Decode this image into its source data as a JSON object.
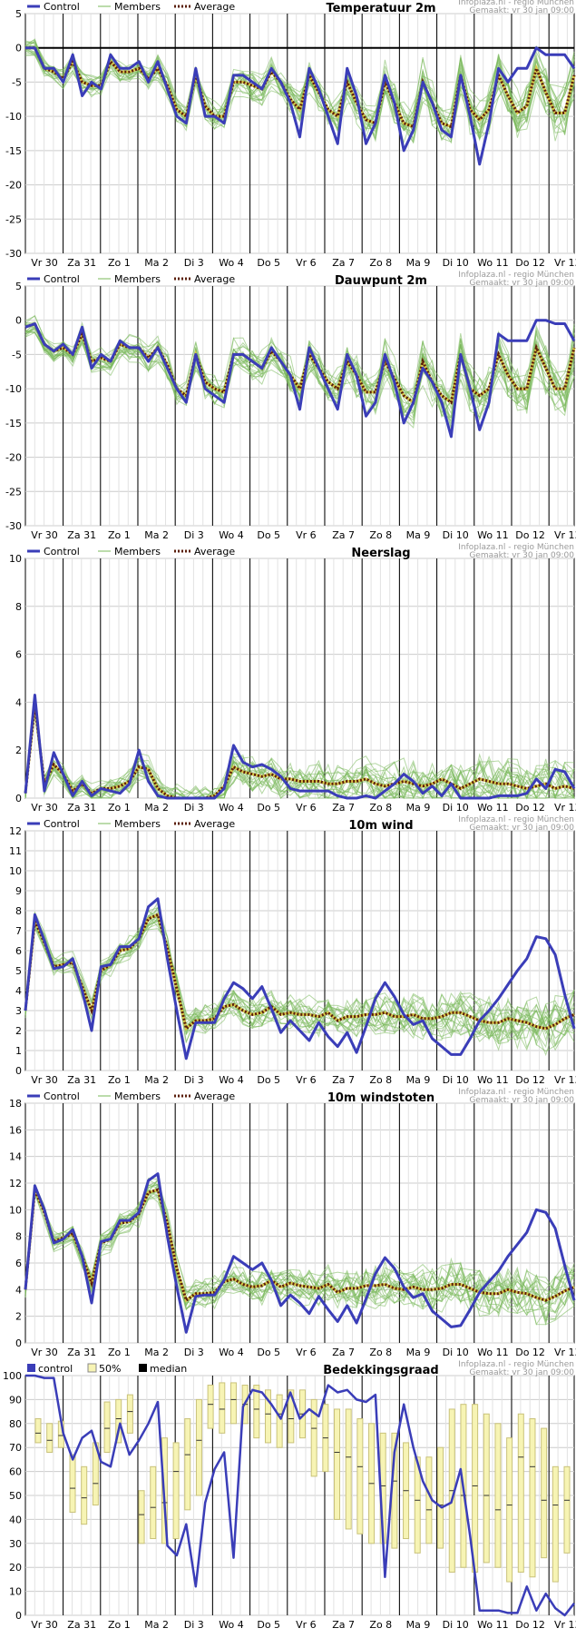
{
  "days": [
    "Vr 30",
    "Za 31",
    "Zo 1",
    "Ma 2",
    "Di 3",
    "Wo 4",
    "Do 5",
    "Vr 6",
    "Za 7",
    "Zo 8",
    "Ma 9",
    "Di 10",
    "Wo 11",
    "Do 12",
    "Vr 13"
  ],
  "site_line": "Infoplaza.nl - regio München",
  "made_line": "Gemaakt: vr 30 jan 09:00",
  "colors": {
    "control": "#3a3db8",
    "members": "#78b85a",
    "average": "#5a1e0a",
    "box": "#f7f4b4",
    "boxBorder": "#c9c27a",
    "grid": "#cccccc",
    "dayline": "#000000"
  },
  "chart_data": [
    {
      "type": "line",
      "title": "Temperatuur 2m",
      "legend": {
        "control": "Control",
        "members": "Members",
        "average": "Average"
      },
      "ylim": [
        -30,
        5
      ],
      "yticks": [
        5,
        0,
        -5,
        -10,
        -15,
        -20,
        -25,
        -30
      ],
      "zero_line": true,
      "series": [
        {
          "name": "Control",
          "values": [
            0,
            0,
            -3,
            -3,
            -5,
            -1,
            -7,
            -5,
            -6,
            -1,
            -3,
            -3,
            -2,
            -5,
            -2,
            -6,
            -10,
            -11,
            -3,
            -10,
            -10,
            -11,
            -4,
            -4,
            -5,
            -6,
            -3,
            -5,
            -8,
            -13,
            -3,
            -6,
            -10,
            -14,
            -3,
            -7,
            -14,
            -11,
            -4,
            -8,
            -15,
            -12,
            -5,
            -8,
            -12,
            -13,
            -4,
            -10,
            -17,
            -11,
            -3,
            -5,
            -3,
            -3,
            0,
            -1,
            -1,
            -1,
            -3
          ]
        },
        {
          "name": "Average",
          "values": [
            0,
            0,
            -3,
            -3.5,
            -4.5,
            -2,
            -5,
            -5.5,
            -5.5,
            -2,
            -3.5,
            -3.5,
            -3,
            -4.5,
            -3,
            -5.5,
            -9,
            -10,
            -4,
            -8.5,
            -10,
            -10,
            -5,
            -5,
            -5.5,
            -6,
            -3.5,
            -5,
            -7.5,
            -9,
            -4,
            -6.5,
            -9,
            -10,
            -5,
            -8,
            -10.5,
            -11,
            -5,
            -8,
            -11,
            -11.5,
            -5,
            -8,
            -11,
            -11.5,
            -4,
            -9,
            -10.5,
            -9,
            -4,
            -7,
            -9.5,
            -8.5,
            -3,
            -6.5,
            -9.5,
            -9.5,
            -4
          ]
        }
      ]
    },
    {
      "type": "line",
      "title": "Dauwpunt 2m",
      "legend": {
        "control": "Control",
        "members": "Members",
        "average": "Average"
      },
      "ylim": [
        -30,
        5
      ],
      "yticks": [
        5,
        0,
        -5,
        -10,
        -15,
        -20,
        -25,
        -30
      ],
      "zero_line": false,
      "series": [
        {
          "name": "Control",
          "values": [
            -1,
            -0.5,
            -3.5,
            -4.5,
            -3.5,
            -5,
            -1,
            -7,
            -5,
            -6,
            -3,
            -4,
            -4,
            -6,
            -4,
            -7,
            -10,
            -12,
            -5,
            -10,
            -11,
            -12,
            -5,
            -5,
            -6,
            -7,
            -4,
            -6,
            -8,
            -13,
            -4,
            -7,
            -10,
            -13,
            -5,
            -8,
            -14,
            -12,
            -5,
            -9,
            -15,
            -12,
            -7,
            -9,
            -12,
            -17,
            -5,
            -10,
            -16,
            -12,
            -2,
            -3,
            -3,
            -3,
            0,
            0,
            -0.5,
            -0.5,
            -3
          ]
        },
        {
          "name": "Average",
          "values": [
            -1,
            -0.5,
            -3.5,
            -4.5,
            -4,
            -5,
            -2,
            -6,
            -5.5,
            -6,
            -3.5,
            -4,
            -4,
            -5.5,
            -4,
            -6.5,
            -10,
            -11,
            -5,
            -9,
            -10,
            -10.5,
            -5,
            -5,
            -6,
            -7,
            -4.5,
            -6,
            -8,
            -10,
            -5,
            -7,
            -9,
            -10,
            -6,
            -8,
            -10.5,
            -10.5,
            -6,
            -8.5,
            -11,
            -12,
            -6,
            -9,
            -11,
            -12,
            -5,
            -10,
            -11,
            -10,
            -5,
            -8,
            -10,
            -10,
            -4,
            -7,
            -10,
            -10,
            -4
          ]
        }
      ]
    },
    {
      "type": "line",
      "title": "Neerslag",
      "legend": {
        "control": "Control",
        "members": "Members",
        "average": "Average"
      },
      "ylim": [
        0,
        10
      ],
      "yticks": [
        10,
        8,
        6,
        4,
        2,
        0
      ],
      "zero_line": false,
      "series": [
        {
          "name": "Control",
          "values": [
            0.2,
            4.3,
            0.3,
            1.9,
            1.0,
            0.1,
            0.7,
            0.1,
            0.4,
            0.3,
            0.2,
            0.6,
            2.0,
            0.7,
            0.1,
            0,
            0,
            0,
            0,
            0,
            0,
            0.4,
            2.2,
            1.5,
            1.3,
            1.4,
            1.2,
            0.9,
            0.4,
            0.3,
            0.3,
            0.3,
            0.3,
            0.1,
            0,
            0,
            0.1,
            0,
            0.3,
            0.6,
            1.0,
            0.7,
            0.2,
            0.5,
            0.1,
            0.6,
            0,
            0,
            0,
            0,
            0.1,
            0.1,
            0.1,
            0.2,
            0.8,
            0.4,
            1.2,
            1.1,
            0.4
          ]
        },
        {
          "name": "Average",
          "values": [
            0.2,
            3.9,
            0.6,
            1.4,
            1.0,
            0.3,
            0.6,
            0.2,
            0.4,
            0.4,
            0.5,
            0.7,
            1.3,
            1.2,
            0.4,
            0.1,
            0,
            0,
            0,
            0,
            0.1,
            0.5,
            1.3,
            1.1,
            1.0,
            0.9,
            1.0,
            0.8,
            0.8,
            0.7,
            0.7,
            0.7,
            0.6,
            0.6,
            0.7,
            0.7,
            0.8,
            0.6,
            0.5,
            0.6,
            0.7,
            0.6,
            0.5,
            0.6,
            0.8,
            0.6,
            0.4,
            0.6,
            0.8,
            0.7,
            0.6,
            0.6,
            0.5,
            0.4,
            0.5,
            0.6,
            0.4,
            0.5,
            0.4
          ]
        }
      ]
    },
    {
      "type": "line",
      "title": "10m wind",
      "legend": {
        "control": "Control",
        "members": "Members",
        "average": "Average"
      },
      "ylim": [
        0,
        12
      ],
      "yticks": [
        12,
        11,
        10,
        9,
        8,
        7,
        6,
        5,
        4,
        3,
        2,
        1,
        0
      ],
      "zero_line": false,
      "series": [
        {
          "name": "Control",
          "values": [
            3,
            7.8,
            6.5,
            5.1,
            5.2,
            5.6,
            4,
            2,
            5.2,
            5.3,
            6.2,
            6.2,
            6.6,
            8.2,
            8.6,
            5.6,
            3,
            0.6,
            2.4,
            2.4,
            2.4,
            3.6,
            4.4,
            4.1,
            3.6,
            4.2,
            3.1,
            1.9,
            2.5,
            2.0,
            1.5,
            2.4,
            1.7,
            1.2,
            1.9,
            0.9,
            2.2,
            3.6,
            4.4,
            3.7,
            2.8,
            2.3,
            2.5,
            1.6,
            1.2,
            0.8,
            0.8,
            1.6,
            2.5,
            3.0,
            3.6,
            4.3,
            5.0,
            5.6,
            6.7,
            6.6,
            5.8,
            3.8,
            2.1
          ]
        },
        {
          "name": "Average",
          "values": [
            3,
            7.5,
            6.4,
            5.2,
            5.3,
            5.4,
            4.2,
            3,
            5,
            5.3,
            6,
            6.1,
            6.6,
            7.6,
            7.8,
            6.1,
            4.1,
            2.1,
            2.5,
            2.5,
            2.6,
            3.2,
            3.3,
            3.0,
            2.8,
            2.9,
            3.2,
            2.8,
            2.9,
            2.8,
            2.8,
            2.7,
            2.9,
            2.5,
            2.7,
            2.7,
            2.8,
            2.8,
            2.9,
            2.7,
            2.7,
            2.8,
            2.6,
            2.6,
            2.7,
            2.9,
            2.9,
            2.7,
            2.5,
            2.4,
            2.4,
            2.6,
            2.5,
            2.4,
            2.2,
            2.1,
            2.3,
            2.6,
            2.8
          ]
        }
      ]
    },
    {
      "type": "line",
      "title": "10m windstoten",
      "legend": {
        "control": "Control",
        "members": "Members",
        "average": "Average"
      },
      "ylim": [
        0,
        18
      ],
      "yticks": [
        18,
        16,
        14,
        12,
        10,
        8,
        6,
        4,
        2,
        0
      ],
      "zero_line": false,
      "series": [
        {
          "name": "Control",
          "values": [
            4,
            11.8,
            10,
            7.5,
            7.8,
            8.5,
            6.5,
            3,
            7.6,
            7.8,
            9.2,
            9.2,
            9.8,
            12.2,
            12.7,
            8,
            4.2,
            0.8,
            3.5,
            3.6,
            3.6,
            4.7,
            6.5,
            6.0,
            5.5,
            6.0,
            4.7,
            2.8,
            3.6,
            3.0,
            2.2,
            3.5,
            2.5,
            1.6,
            2.8,
            1.5,
            3.3,
            5.2,
            6.4,
            5.6,
            4.2,
            3.4,
            3.7,
            2.4,
            1.8,
            1.2,
            1.3,
            2.5,
            3.8,
            4.6,
            5.4,
            6.5,
            7.4,
            8.3,
            10,
            9.8,
            8.6,
            5.8,
            3.2
          ]
        },
        {
          "name": "Average",
          "values": [
            4,
            11.5,
            9.8,
            7.6,
            7.9,
            8.2,
            6.5,
            4.5,
            7.5,
            7.8,
            9,
            9.1,
            9.7,
            11.3,
            11.5,
            9,
            5.6,
            3.2,
            3.7,
            3.7,
            3.8,
            4.6,
            4.8,
            4.4,
            4.2,
            4.3,
            4.7,
            4.2,
            4.5,
            4.3,
            4.2,
            4.1,
            4.4,
            3.8,
            4.1,
            4.1,
            4.3,
            4.3,
            4.4,
            4.1,
            4.0,
            4.2,
            4.0,
            4.0,
            4.1,
            4.4,
            4.4,
            4.1,
            3.8,
            3.7,
            3.7,
            4.0,
            3.8,
            3.7,
            3.4,
            3.2,
            3.5,
            3.9,
            4.2
          ]
        }
      ]
    },
    {
      "type": "box",
      "title": "Bedekkingsgraad",
      "legend": {
        "control": "control",
        "box": "50%",
        "median": "median"
      },
      "ylim": [
        0,
        100
      ],
      "yticks": [
        100,
        90,
        80,
        70,
        60,
        50,
        40,
        30,
        20,
        10,
        0
      ],
      "zero_line": false,
      "control": [
        100,
        100,
        99,
        99,
        76,
        65,
        74,
        77,
        64,
        62,
        80,
        67,
        73,
        80,
        89,
        29,
        25,
        38,
        12,
        47,
        61,
        68,
        24,
        87,
        94,
        93,
        88,
        82,
        93,
        82,
        86,
        83,
        96,
        93,
        94,
        90,
        89,
        92,
        16,
        68,
        88,
        70,
        56,
        48,
        45,
        47,
        61,
        33,
        2,
        2,
        2,
        1,
        1,
        12,
        2,
        9,
        3,
        0,
        5
      ],
      "boxes": [
        {
          "q1": 72,
          "q3": 82,
          "median": 76
        },
        {
          "q1": 68,
          "q3": 80,
          "median": 73
        },
        {
          "q1": 70,
          "q3": 81,
          "median": 75
        },
        {
          "q1": 43,
          "q3": 67,
          "median": 53
        },
        {
          "q1": 38,
          "q3": 62,
          "median": 49
        },
        {
          "q1": 46,
          "q3": 72,
          "median": 55
        },
        {
          "q1": 68,
          "q3": 89,
          "median": 78
        },
        {
          "q1": 72,
          "q3": 90,
          "median": 82
        },
        {
          "q1": 76,
          "q3": 92,
          "median": 85
        },
        {
          "q1": 30,
          "q3": 52,
          "median": 42
        },
        {
          "q1": 32,
          "q3": 62,
          "median": 45
        },
        {
          "q1": 30,
          "q3": 74,
          "median": 47
        },
        {
          "q1": 32,
          "q3": 72,
          "median": 60
        },
        {
          "q1": 44,
          "q3": 82,
          "median": 67
        },
        {
          "q1": 50,
          "q3": 90,
          "median": 73
        },
        {
          "q1": 78,
          "q3": 96,
          "median": 88
        },
        {
          "q1": 76,
          "q3": 97,
          "median": 86
        },
        {
          "q1": 80,
          "q3": 97,
          "median": 90
        },
        {
          "q1": 80,
          "q3": 96,
          "median": 88
        },
        {
          "q1": 74,
          "q3": 96,
          "median": 86
        },
        {
          "q1": 72,
          "q3": 94,
          "median": 84
        },
        {
          "q1": 70,
          "q3": 92,
          "median": 84
        },
        {
          "q1": 72,
          "q3": 94,
          "median": 82
        },
        {
          "q1": 74,
          "q3": 94,
          "median": 84
        },
        {
          "q1": 58,
          "q3": 90,
          "median": 78
        },
        {
          "q1": 60,
          "q3": 88,
          "median": 74
        },
        {
          "q1": 40,
          "q3": 86,
          "median": 68
        },
        {
          "q1": 36,
          "q3": 86,
          "median": 66
        },
        {
          "q1": 34,
          "q3": 82,
          "median": 62
        },
        {
          "q1": 30,
          "q3": 80,
          "median": 55
        },
        {
          "q1": 30,
          "q3": 76,
          "median": 54
        },
        {
          "q1": 28,
          "q3": 76,
          "median": 56
        },
        {
          "q1": 32,
          "q3": 72,
          "median": 52
        },
        {
          "q1": 26,
          "q3": 66,
          "median": 48
        },
        {
          "q1": 30,
          "q3": 66,
          "median": 44
        },
        {
          "q1": 28,
          "q3": 70,
          "median": 46
        },
        {
          "q1": 18,
          "q3": 86,
          "median": 52
        },
        {
          "q1": 20,
          "q3": 88,
          "median": 50
        },
        {
          "q1": 18,
          "q3": 88,
          "median": 54
        },
        {
          "q1": 22,
          "q3": 84,
          "median": 50
        },
        {
          "q1": 20,
          "q3": 80,
          "median": 44
        },
        {
          "q1": 14,
          "q3": 74,
          "median": 46
        },
        {
          "q1": 18,
          "q3": 84,
          "median": 66
        },
        {
          "q1": 16,
          "q3": 82,
          "median": 62
        },
        {
          "q1": 24,
          "q3": 78,
          "median": 48
        },
        {
          "q1": 14,
          "q3": 62,
          "median": 46
        },
        {
          "q1": 26,
          "q3": 62,
          "median": 48
        }
      ]
    }
  ]
}
